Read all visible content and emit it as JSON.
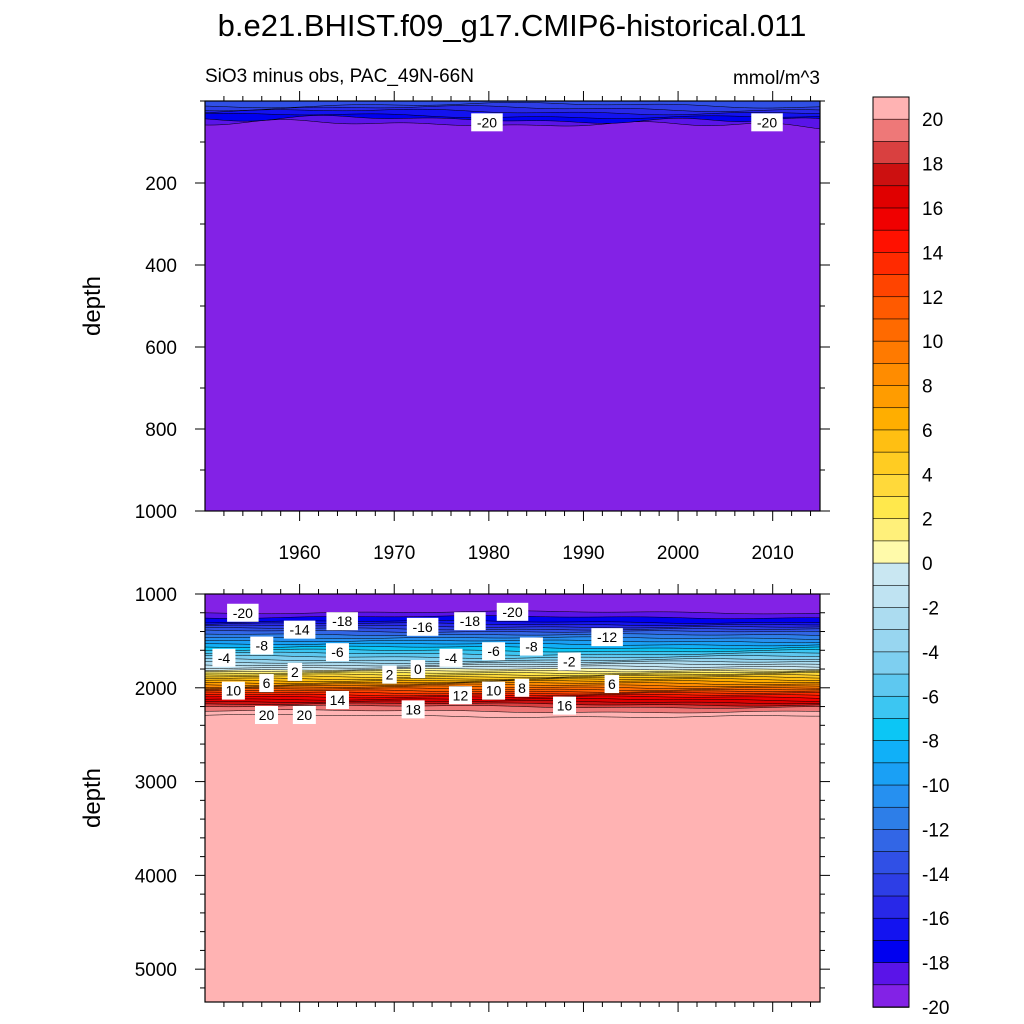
{
  "chart_data": {
    "type": "contour",
    "title": "b.e21.BHIST.f09_g17.CMIP6-historical.011",
    "subtitle_left": "SiO3 minus obs, PAC_49N-66N",
    "subtitle_right": "mmol/m^3",
    "colorbar": {
      "levels": [
        -20,
        -19,
        -18,
        -17,
        -16,
        -15,
        -14,
        -13,
        -12,
        -11,
        -10,
        -9,
        -8,
        -7,
        -6,
        -5,
        -4,
        -3,
        -2,
        -1,
        0,
        1,
        2,
        3,
        4,
        5,
        6,
        7,
        8,
        9,
        10,
        11,
        12,
        13,
        14,
        15,
        16,
        17,
        18,
        19,
        20
      ],
      "tick_labels": [
        "20",
        "18",
        "16",
        "14",
        "12",
        "10",
        "8",
        "6",
        "4",
        "2",
        "0",
        "-2",
        "-4",
        "-6",
        "-8",
        "-10",
        "-12",
        "-14",
        "-16",
        "-18",
        "-20"
      ],
      "colors": [
        "#8322e6",
        "#5a14e8",
        "#0000f0",
        "#1313f0",
        "#2828e8",
        "#2d3ee6",
        "#3050e6",
        "#3266e6",
        "#2d7ee8",
        "#2690f0",
        "#1aa0f5",
        "#10b0f8",
        "#0cc6f5",
        "#3cc6f2",
        "#5ec8f0",
        "#7ecff0",
        "#98d6f0",
        "#acdcf0",
        "#bfe3f2",
        "#c9e7f2",
        "#fffaaa",
        "#fff07a",
        "#ffe84c",
        "#ffd93a",
        "#ffcc22",
        "#ffbf12",
        "#ffae00",
        "#ff9c00",
        "#ff8c00",
        "#ff7a00",
        "#ff6a00",
        "#ff5a00",
        "#ff4400",
        "#ff2a00",
        "#ff1100",
        "#f00000",
        "#e00000",
        "#cc1010",
        "#d94040",
        "#ee7878",
        "#ffb3b3"
      ]
    },
    "panels": [
      {
        "name": "upper",
        "xlabel": "",
        "ylabel": "depth",
        "xlim": [
          1950,
          2015
        ],
        "ylim": [
          0,
          1000
        ],
        "y_reversed": true,
        "x_ticks": [
          1960,
          1970,
          1980,
          1990,
          2000,
          2010
        ],
        "y_ticks": [
          200,
          400,
          600,
          800,
          1000
        ],
        "background_value": -20,
        "description_values": "near-surface layer (0-60 m) shallower negative gradient, below ~60 m uniformly -20",
        "contour_labels": [
          {
            "text": "-20",
            "x": 1979.8,
            "y": 52
          },
          {
            "text": "-20",
            "x": 2009.4,
            "y": 52
          }
        ]
      },
      {
        "name": "lower",
        "xlabel": "",
        "ylabel": "depth",
        "xlim": [
          1950,
          2015
        ],
        "ylim": [
          1000,
          5350
        ],
        "y_reversed": true,
        "x_ticks": [
          1960,
          1970,
          1980,
          1990,
          2000,
          2010
        ],
        "y_ticks": [
          1000,
          2000,
          3000,
          4000,
          5000
        ],
        "profile_depth": [
          1000,
          1200,
          1300,
          1400,
          1500,
          1600,
          1700,
          1800,
          1900,
          2000,
          2100,
          2200,
          2300,
          5350
        ],
        "profile_value": [
          -20,
          -20,
          -18,
          -14,
          -11,
          -8,
          -5,
          -1,
          4,
          9,
          14,
          18,
          20,
          20
        ],
        "contour_labels": [
          {
            "text": "-20",
            "x": 1954.0,
            "y": 1200
          },
          {
            "text": "-14",
            "x": 1960.0,
            "y": 1380
          },
          {
            "text": "-18",
            "x": 1964.5,
            "y": 1290
          },
          {
            "text": "-16",
            "x": 1973.0,
            "y": 1350
          },
          {
            "text": "-18",
            "x": 1978.0,
            "y": 1290
          },
          {
            "text": "-20",
            "x": 1982.5,
            "y": 1190
          },
          {
            "text": "-12",
            "x": 1992.5,
            "y": 1460
          },
          {
            "text": "-8",
            "x": 1956.0,
            "y": 1550
          },
          {
            "text": "-6",
            "x": 1964.0,
            "y": 1620
          },
          {
            "text": "-4",
            "x": 1952.0,
            "y": 1680
          },
          {
            "text": "-4",
            "x": 1976.0,
            "y": 1680
          },
          {
            "text": "-6",
            "x": 1980.5,
            "y": 1610
          },
          {
            "text": "-8",
            "x": 1984.5,
            "y": 1560
          },
          {
            "text": "-2",
            "x": 1988.5,
            "y": 1720
          },
          {
            "text": "2",
            "x": 1959.5,
            "y": 1830
          },
          {
            "text": "2",
            "x": 1969.5,
            "y": 1860
          },
          {
            "text": "0",
            "x": 1972.5,
            "y": 1800
          },
          {
            "text": "6",
            "x": 1956.5,
            "y": 1950
          },
          {
            "text": "6",
            "x": 1993.0,
            "y": 1960
          },
          {
            "text": "10",
            "x": 1953.0,
            "y": 2030
          },
          {
            "text": "8",
            "x": 1983.5,
            "y": 2000
          },
          {
            "text": "10",
            "x": 1980.5,
            "y": 2030
          },
          {
            "text": "12",
            "x": 1977.0,
            "y": 2080
          },
          {
            "text": "14",
            "x": 1964.0,
            "y": 2130
          },
          {
            "text": "16",
            "x": 1988.0,
            "y": 2190
          },
          {
            "text": "18",
            "x": 1972.0,
            "y": 2230
          },
          {
            "text": "20",
            "x": 1956.5,
            "y": 2290
          },
          {
            "text": "20",
            "x": 1960.5,
            "y": 2290
          }
        ]
      }
    ]
  }
}
